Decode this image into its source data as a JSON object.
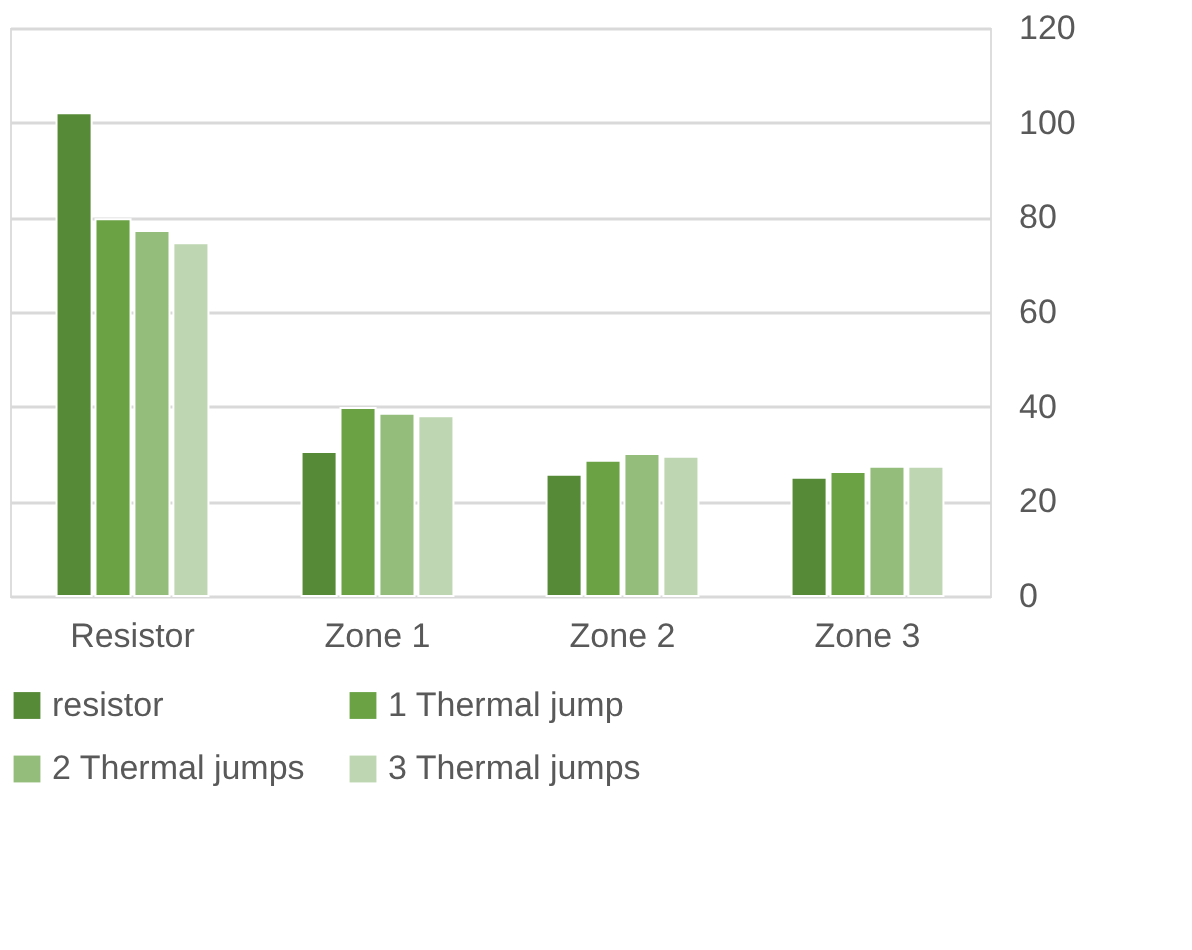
{
  "chart_data": {
    "type": "bar",
    "categories": [
      "Resistor",
      "Zone 1",
      "Zone 2",
      "Zone 3"
    ],
    "series": [
      {
        "name": "resistor",
        "color": "#578a37",
        "values": [
          102,
          30.4,
          25.6,
          25.0
        ]
      },
      {
        "name": "1 Thermal jump",
        "color": "#6aa244",
        "values": [
          79.6,
          39.7,
          28.6,
          26.2
        ]
      },
      {
        "name": "2 Thermal jumps",
        "color": "#94bd7c",
        "values": [
          77.1,
          38.5,
          30.0,
          27.3
        ]
      },
      {
        "name": "3 Thermal jumps",
        "color": "#bed6b1",
        "values": [
          74.5,
          38.0,
          29.4,
          27.3
        ]
      }
    ],
    "ylim": [
      0,
      120
    ],
    "yticks": [
      0,
      20,
      40,
      60,
      80,
      100,
      120
    ],
    "grid": "y",
    "legend": "bottom"
  }
}
